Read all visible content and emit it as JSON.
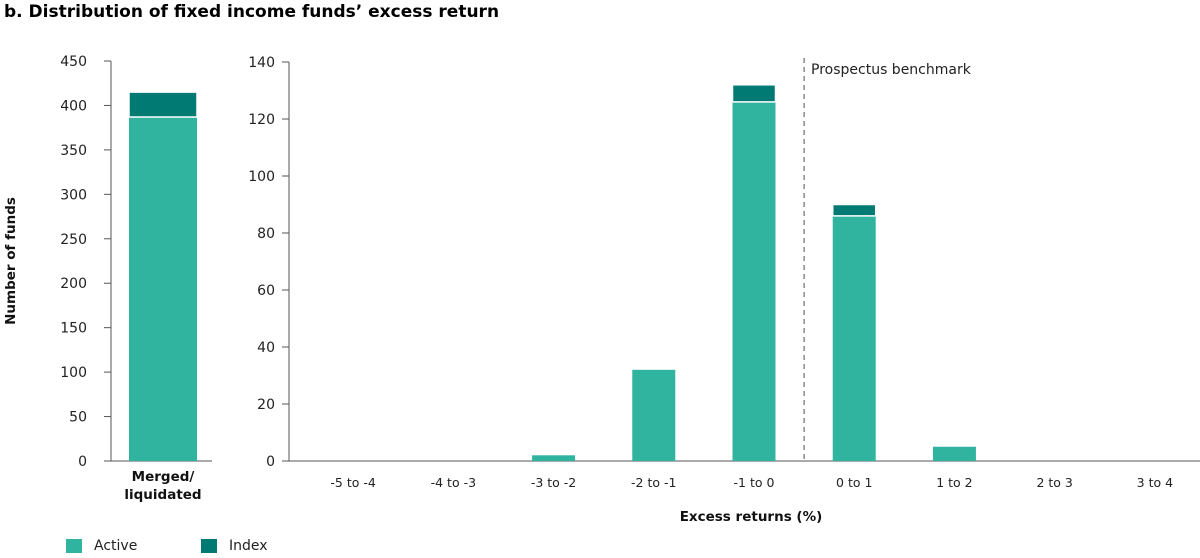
{
  "title": "b. Distribution of fixed income funds’ excess return",
  "colors": {
    "active": "#31b49f",
    "index": "#007a72",
    "axis": "#555555",
    "benchmark": "#777777"
  },
  "legend": [
    {
      "label": "Active",
      "color": "#31b49f"
    },
    {
      "label": "Index",
      "color": "#007a72"
    }
  ],
  "chart_data": [
    {
      "type": "bar",
      "stacked": true,
      "ylabel": "Number of funds",
      "ylim": [
        0,
        450
      ],
      "yticks": [
        0,
        50,
        100,
        150,
        200,
        250,
        300,
        350,
        400,
        450
      ],
      "categories": [
        "Merged/ liquidated"
      ],
      "category_lines": [
        "Merged/",
        "liquidated"
      ],
      "series": [
        {
          "name": "Active",
          "values": [
            387
          ]
        },
        {
          "name": "Index",
          "values": [
            28
          ]
        }
      ]
    },
    {
      "type": "bar",
      "stacked": true,
      "xlabel": "Excess returns (%)",
      "ylim": [
        0,
        140
      ],
      "yticks": [
        0,
        20,
        40,
        60,
        80,
        100,
        120,
        140
      ],
      "categories": [
        "-5 to -4",
        "-4 to -3",
        "-3 to -2",
        "-2 to -1",
        "-1 to 0",
        "0 to 1",
        "1 to 2",
        "2 to 3",
        "3 to 4"
      ],
      "series": [
        {
          "name": "Active",
          "values": [
            0,
            0,
            2,
            32,
            126,
            86,
            5,
            0,
            0
          ]
        },
        {
          "name": "Index",
          "values": [
            0,
            0,
            0,
            0,
            6,
            4,
            0,
            0,
            0
          ]
        }
      ],
      "annotation": "Prospectus benchmark",
      "benchmark_between": [
        "-1 to 0",
        "0 to 1"
      ]
    }
  ]
}
